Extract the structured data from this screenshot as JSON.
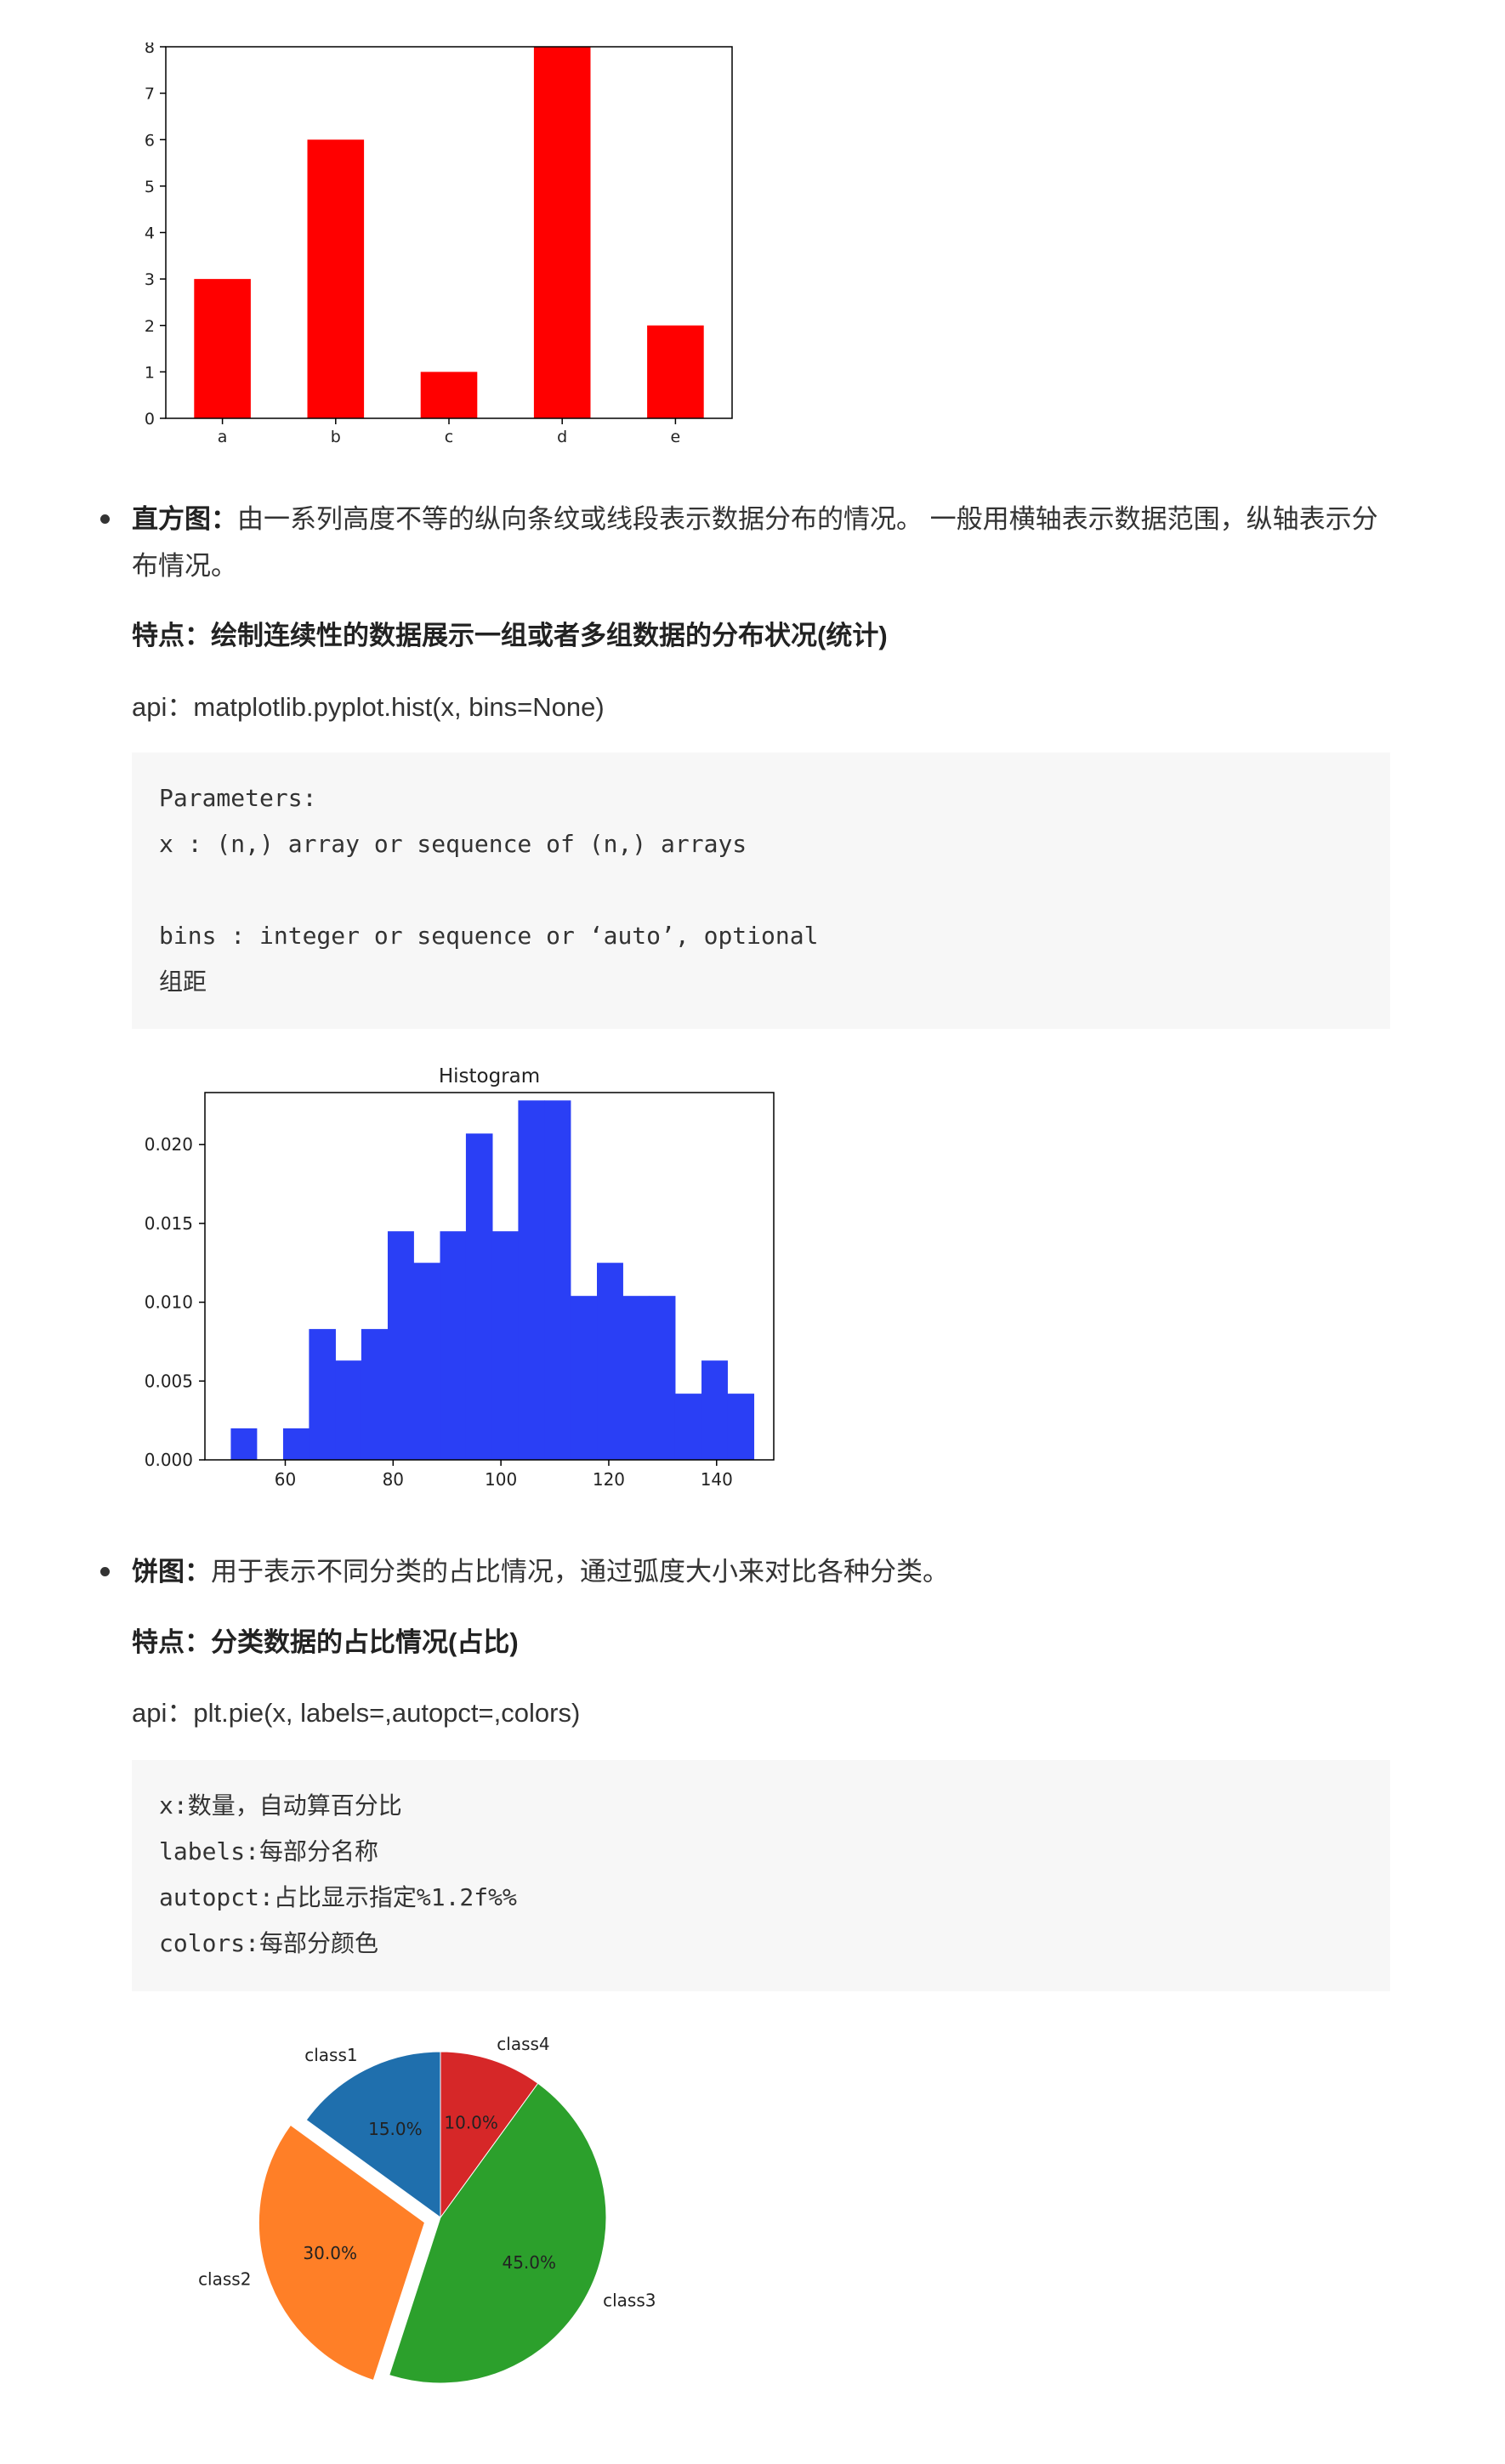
{
  "bar_section": {
    "chart_data": {
      "type": "bar",
      "categories": [
        "a",
        "b",
        "c",
        "d",
        "e"
      ],
      "values": [
        3,
        6,
        1,
        8,
        2
      ],
      "ylim": [
        0,
        8
      ],
      "yticks": [
        0,
        1,
        2,
        3,
        4,
        5,
        6,
        7,
        8
      ],
      "color": "#ff0000",
      "title": "",
      "xlabel": "",
      "ylabel": "",
      "grid": false
    }
  },
  "histogram_section": {
    "bullet_title": "直方图：",
    "bullet_desc": "由一系列高度不等的纵向条纹或线段表示数据分布的情况。 一般用横轴表示数据范围，纵轴表示分布情况。",
    "feature": "特点：绘制连续性的数据展示一组或者多组数据的分布状况(统计)",
    "api": "api：matplotlib.pyplot.hist(x, bins=None)",
    "code_lines": [
      "Parameters:",
      "x : (n,) array or sequence of (n,) arrays",
      "",
      "bins : integer or sequence or ‘auto’, optional",
      "组距"
    ],
    "chart_data": {
      "type": "bar",
      "title": "Histogram",
      "bin_edges": [
        49.9,
        54.7,
        59.6,
        64.4,
        69.3,
        74.1,
        79.0,
        83.8,
        88.7,
        93.5,
        98.4,
        103.2,
        108.1,
        112.9,
        117.8,
        122.6,
        127.5,
        132.3,
        137.2,
        142.0,
        146.9
      ],
      "values": [
        0.002,
        0.0,
        0.002,
        0.0083,
        0.0063,
        0.0083,
        0.0145,
        0.0125,
        0.0145,
        0.0207,
        0.0145,
        0.0228,
        0.0228,
        0.0104,
        0.0125,
        0.0104,
        0.0104,
        0.0042,
        0.0063,
        0.0042
      ],
      "xlim": [
        45.1,
        150.6
      ],
      "ylim": [
        0,
        0.0233
      ],
      "xticks": [
        60,
        80,
        100,
        120,
        140
      ],
      "yticks": [
        "0.000",
        "0.005",
        "0.010",
        "0.015",
        "0.020"
      ],
      "color": "#2a3ff5",
      "xlabel": "",
      "ylabel": "",
      "grid": false
    }
  },
  "pie_section": {
    "bullet_title": "饼图：",
    "bullet_desc": "用于表示不同分类的占比情况，通过弧度大小来对比各种分类。",
    "feature": "特点：分类数据的占比情况(占比)",
    "api": "api：plt.pie(x, labels=,autopct=,colors)",
    "code_lines": [
      "x:数量，自动算百分比",
      "labels:每部分名称",
      "autopct:占比显示指定%1.2f%%",
      "colors:每部分颜色"
    ],
    "chart_data": {
      "type": "pie",
      "labels": [
        "class1",
        "class2",
        "class3",
        "class4"
      ],
      "values": [
        15,
        30,
        45,
        10
      ],
      "pct_labels": [
        "15.0%",
        "30.0%",
        "45.0%",
        "10.0%"
      ],
      "colors": [
        "#1f6fad",
        "#ff7f27",
        "#2ca02c",
        "#d62728"
      ],
      "explode": [
        0,
        0.1,
        0,
        0
      ],
      "start_angle_deg": 90,
      "title": ""
    }
  }
}
